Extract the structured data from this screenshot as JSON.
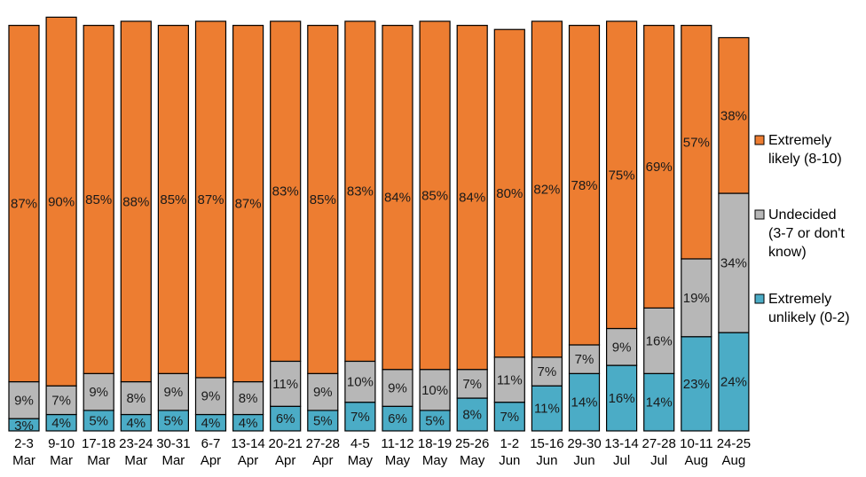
{
  "chart_data": {
    "type": "bar",
    "stacked": true,
    "categories": [
      [
        "2-3",
        "Mar"
      ],
      [
        "9-10",
        "Mar"
      ],
      [
        "17-18",
        "Mar"
      ],
      [
        "23-24",
        "Mar"
      ],
      [
        "30-31",
        "Mar"
      ],
      [
        "6-7",
        "Apr"
      ],
      [
        "13-14",
        "Apr"
      ],
      [
        "20-21",
        "Apr"
      ],
      [
        "27-28",
        "Apr"
      ],
      [
        "4-5",
        "May"
      ],
      [
        "11-12",
        "May"
      ],
      [
        "18-19",
        "May"
      ],
      [
        "25-26",
        "May"
      ],
      [
        "1-2",
        "Jun"
      ],
      [
        "15-16",
        "Jun"
      ],
      [
        "29-30",
        "Jun"
      ],
      [
        "13-14",
        "Jul"
      ],
      [
        "27-28",
        "Jul"
      ],
      [
        "10-11",
        "Aug"
      ],
      [
        "24-25",
        "Aug"
      ]
    ],
    "series": [
      {
        "key": "unlikely",
        "name": "Extremely unlikely (0-2)",
        "legend_lines": [
          "Extremely",
          "unlikely (0-2)"
        ],
        "color": "#4bacc6",
        "values": [
          3,
          4,
          5,
          4,
          5,
          4,
          4,
          6,
          5,
          7,
          6,
          5,
          8,
          7,
          11,
          14,
          16,
          14,
          23,
          24
        ]
      },
      {
        "key": "undecided",
        "name": "Undecided (3-7 or don't know)",
        "legend_lines": [
          "Undecided",
          "(3-7 or don't",
          "know)"
        ],
        "color": "#b7b7b7",
        "values": [
          9,
          7,
          9,
          8,
          9,
          9,
          8,
          11,
          9,
          10,
          9,
          10,
          7,
          11,
          7,
          7,
          9,
          16,
          19,
          34
        ]
      },
      {
        "key": "likely",
        "name": "Extremely likely (8-10)",
        "legend_lines": [
          "Extremely",
          "likely (8-10)"
        ],
        "color": "#ed7d31",
        "values": [
          87,
          90,
          85,
          88,
          85,
          87,
          87,
          83,
          85,
          83,
          84,
          85,
          84,
          80,
          82,
          78,
          75,
          69,
          57,
          38
        ]
      }
    ],
    "value_suffix": "%",
    "legend_position": "right",
    "grid": false
  }
}
